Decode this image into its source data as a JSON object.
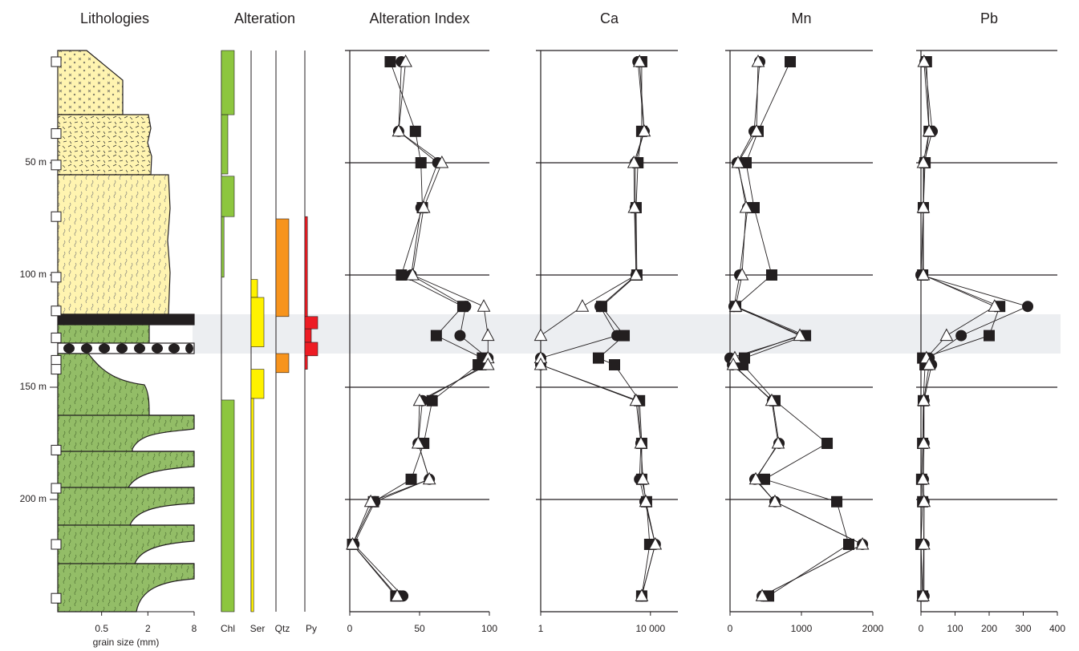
{
  "chart_data": [
    {
      "type": "lithology",
      "title": "Lithologies",
      "xlabel": "grain size (mm)",
      "log_x": true,
      "xlim": [
        0.125,
        8
      ],
      "xticks": [
        0.5,
        2,
        8
      ],
      "ylim": [
        0,
        250
      ],
      "yticks": [
        {
          "value": 50,
          "label": "50 m"
        },
        {
          "value": 100,
          "label": "100 m"
        },
        {
          "value": 150,
          "label": "150 m"
        },
        {
          "value": 200,
          "label": "200 m"
        }
      ],
      "sample_depths": [
        5,
        37,
        51,
        74,
        101,
        116,
        128,
        138,
        142,
        178,
        195,
        220,
        244
      ],
      "highlight": [
        117.5,
        135
      ]
    },
    {
      "type": "alteration",
      "title": "Alteration",
      "categories": [
        "Chl",
        "Ser",
        "Qtz",
        "Py"
      ],
      "colors": [
        "#8dc63f",
        "#fff200",
        "#f7941d",
        "#ed1c24"
      ],
      "intervals": [
        [
          [
            0,
            28.6,
            1
          ],
          [
            28.6,
            55,
            0.5
          ],
          [
            56,
            74,
            1
          ],
          [
            74,
            101,
            0.2
          ],
          [
            155.7,
            250,
            1
          ]
        ],
        [
          [
            102,
            110,
            0.5
          ],
          [
            110,
            132,
            1
          ],
          [
            142,
            155,
            1
          ],
          [
            155,
            250,
            0.2
          ]
        ],
        [
          [
            75,
            118.5,
            1
          ],
          [
            135,
            143.5,
            1
          ]
        ],
        [
          [
            74,
            118.5,
            0.2
          ],
          [
            118.5,
            124,
            1
          ],
          [
            124,
            130,
            0.5
          ],
          [
            130,
            136,
            1
          ],
          [
            136,
            142,
            0.2
          ]
        ]
      ]
    },
    {
      "type": "line",
      "title": "Alteration Index",
      "xlim": [
        0,
        100
      ],
      "xticks": [
        0,
        50,
        100
      ],
      "grid": true,
      "y": [
        5,
        36,
        50,
        70,
        100,
        114,
        127,
        137,
        140,
        156,
        175,
        191,
        201,
        220,
        243
      ],
      "series": [
        {
          "marker": "circle",
          "color": "#231f20",
          "values": [
            37,
            35,
            63,
            51,
            44,
            83,
            79,
            99,
            97,
            52,
            49,
            57,
            18,
            3,
            38
          ]
        },
        {
          "marker": "square",
          "color": "#231f20",
          "values": [
            29,
            47,
            51,
            52,
            37,
            81,
            62,
            95,
            92,
            59,
            53,
            44,
            17,
            2,
            33
          ]
        },
        {
          "marker": "triangle",
          "color": "#ffffff",
          "values": [
            40,
            35,
            66,
            53,
            45,
            96,
            99,
            99,
            99,
            50,
            49,
            57,
            15,
            2,
            34
          ]
        }
      ]
    },
    {
      "type": "line",
      "title": "Ca",
      "log_x": true,
      "xlim": [
        1,
        100000
      ],
      "xticks": [
        1,
        {
          "value": 10000,
          "label": "10 000"
        }
      ],
      "grid": true,
      "y": [
        5,
        36,
        50,
        70,
        100,
        114,
        127,
        137,
        140,
        156,
        175,
        191,
        201,
        220,
        243
      ],
      "series": [
        {
          "marker": "circle",
          "color": "#231f20",
          "values": [
            3500,
            5900,
            2800,
            2800,
            3000,
            146,
            600,
            1,
            1,
            3500,
            4500,
            4000,
            6300,
            15000,
            4800
          ]
        },
        {
          "marker": "square",
          "color": "#231f20",
          "values": [
            4800,
            4800,
            3500,
            3000,
            3200,
            166,
            1100,
            127,
            490,
            4000,
            4800,
            4800,
            7200,
            9400,
            4800
          ]
        },
        {
          "marker": "triangle",
          "color": "#ffffff",
          "values": [
            4000,
            5900,
            2500,
            2600,
            3000,
            33,
            1,
            1,
            1,
            3000,
            4500,
            5300,
            6800,
            15000,
            4800
          ]
        }
      ]
    },
    {
      "type": "line",
      "title": "Mn",
      "xlim": [
        0,
        2000
      ],
      "xticks": [
        0,
        1000,
        2000
      ],
      "grid": true,
      "y": [
        5,
        36,
        50,
        70,
        100,
        114,
        127,
        137,
        140,
        156,
        175,
        191,
        201,
        220,
        243
      ],
      "series": [
        {
          "marker": "circle",
          "color": "#231f20",
          "values": [
            416,
            337,
            101,
            247,
            135,
            56,
            1012,
            0,
            34,
            596,
            686,
            348,
            629,
            1855,
            450
          ]
        },
        {
          "marker": "square",
          "color": "#231f20",
          "values": [
            843,
            393,
            225,
            337,
            584,
            79,
            1057,
            202,
            180,
            629,
            1360,
            483,
            1495,
            1663,
            540
          ]
        },
        {
          "marker": "triangle",
          "color": "#ffffff",
          "values": [
            393,
            371,
            112,
            225,
            169,
            79,
            978,
            67,
            45,
            584,
            674,
            360,
            629,
            1855,
            450
          ]
        }
      ]
    },
    {
      "type": "line",
      "title": "Pb",
      "xlim": [
        0,
        400
      ],
      "xticks": [
        0,
        100,
        200,
        300,
        400
      ],
      "grid": true,
      "y": [
        5,
        36,
        50,
        70,
        100,
        114,
        127,
        137,
        140,
        156,
        175,
        191,
        201,
        220,
        243
      ],
      "series": [
        {
          "marker": "circle",
          "color": "#231f20",
          "values": [
            12,
            33,
            9,
            7,
            0,
            313,
            118,
            24,
            31,
            9,
            9,
            7,
            9,
            9,
            9
          ]
        },
        {
          "marker": "square",
          "color": "#231f20",
          "values": [
            16,
            24,
            12,
            7,
            5,
            231,
            200,
            5,
            12,
            7,
            5,
            2,
            5,
            0,
            5
          ]
        },
        {
          "marker": "triangle",
          "color": "#ffffff",
          "values": [
            9,
            24,
            7,
            7,
            7,
            216,
            75,
            16,
            24,
            8,
            8,
            6,
            9,
            8,
            6
          ]
        }
      ]
    }
  ]
}
